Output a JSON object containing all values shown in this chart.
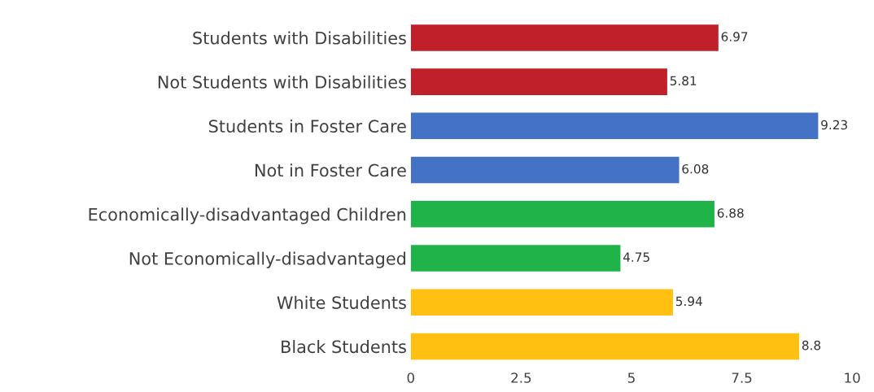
{
  "chart_data": {
    "type": "bar",
    "orientation": "horizontal",
    "categories": [
      "Students with Disabilities",
      "Not Students with Disabilities",
      "Students in Foster Care",
      "Not in Foster Care",
      "Economically-disadvantaged Children",
      "Not Economically-disadvantaged",
      "White Students",
      "Black Students"
    ],
    "values": [
      6.97,
      5.81,
      9.23,
      6.08,
      6.88,
      4.75,
      5.94,
      8.8
    ],
    "colors": [
      "#c0202a",
      "#c0202a",
      "#4472c4",
      "#4472c4",
      "#1fb34a",
      "#1fb34a",
      "#ffc012",
      "#ffc012"
    ],
    "xlim": [
      0,
      10
    ],
    "xticks": [
      0,
      2.5,
      5,
      7.5,
      10
    ],
    "data_labels": true,
    "grid": false
  }
}
